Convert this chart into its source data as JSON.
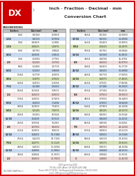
{
  "title_line1": "Inch · Fraction · Decimal · mm",
  "title_line2": "Conversion Chart",
  "bg_color": "#ffffff",
  "border_color": "#cc0000",
  "row_colors": {
    "white": "#ffffff",
    "blue": "#c6d9f1",
    "green": "#d8e4bc",
    "red": "#f2dcdb",
    "gray": "#d9d9d9"
  },
  "left_rows": [
    [
      "",
      "1/64",
      "0.0156",
      "0.3969",
      "white"
    ],
    [
      "1/32",
      "",
      "0.0313",
      "0.7938",
      "blue"
    ],
    [
      "",
      "3/64",
      "0.0469",
      "1.1906",
      "white"
    ],
    [
      "1/16",
      "",
      "0.0625",
      "1.5875",
      "green"
    ],
    [
      "",
      "5/64",
      "0.0781",
      "1.9844",
      "white"
    ],
    [
      "3/32",
      "",
      "0.0938",
      "2.3813",
      "blue"
    ],
    [
      "",
      "7/64",
      "0.1094",
      "2.7781",
      "white"
    ],
    [
      "1/8",
      "",
      "0.1250",
      "3.1750",
      "red"
    ],
    [
      "",
      "9/64",
      "0.1406",
      "3.5719",
      "white"
    ],
    [
      "5/32",
      "",
      "0.1563",
      "3.9688",
      "blue"
    ],
    [
      "",
      "11/64",
      "0.1719",
      "4.3656",
      "white"
    ],
    [
      "3/16",
      "",
      "0.1875",
      "4.7625",
      "green"
    ],
    [
      "",
      "13/64",
      "0.2031",
      "5.1594",
      "white"
    ],
    [
      "7/32",
      "",
      "0.2188",
      "5.5563",
      "blue"
    ],
    [
      "",
      "15/64",
      "0.2344",
      "5.9531",
      "white"
    ],
    [
      "1/4",
      "",
      "0.2500",
      "6.3500",
      "red"
    ],
    [
      "",
      "17/64",
      "0.2656",
      "6.7469",
      "white"
    ],
    [
      "9/32",
      "",
      "0.2813",
      "7.1438",
      "blue"
    ],
    [
      "",
      "19/64",
      "0.2969",
      "7.5406",
      "white"
    ],
    [
      "5/16",
      "",
      "0.3125",
      "7.9375",
      "green"
    ],
    [
      "",
      "21/64",
      "0.3281",
      "8.3344",
      "white"
    ],
    [
      "11/32",
      "",
      "0.3438",
      "8.7313",
      "blue"
    ],
    [
      "",
      "23/64",
      "0.3594",
      "9.1281",
      "white"
    ],
    [
      "3/8",
      "",
      "0.3750",
      "9.5250",
      "red"
    ],
    [
      "",
      "25/64",
      "0.3906",
      "9.9219",
      "white"
    ],
    [
      "13/32",
      "",
      "0.4063",
      "10.3188",
      "blue"
    ],
    [
      "",
      "27/64",
      "0.4219",
      "10.7156",
      "white"
    ],
    [
      "7/16",
      "",
      "0.4375",
      "11.1125",
      "green"
    ],
    [
      "",
      "29/64",
      "0.4531",
      "11.5094",
      "white"
    ],
    [
      "15/32",
      "",
      "0.4688",
      "11.9063",
      "blue"
    ],
    [
      "",
      "31/64",
      "0.4844",
      "12.3031",
      "white"
    ],
    [
      "1/2",
      "",
      "0.5000",
      "12.7000",
      "red"
    ]
  ],
  "right_rows": [
    [
      "",
      "33/64",
      "0.5156",
      "13.0969",
      "white"
    ],
    [
      "17/32",
      "",
      "0.5313",
      "13.4938",
      "blue"
    ],
    [
      "",
      "35/64",
      "0.5469",
      "13.8906",
      "white"
    ],
    [
      "9/16",
      "",
      "0.5625",
      "14.2875",
      "green"
    ],
    [
      "",
      "37/64",
      "0.5781",
      "14.6844",
      "white"
    ],
    [
      "19/32",
      "",
      "0.5938",
      "15.0813",
      "blue"
    ],
    [
      "",
      "39/64",
      "0.6094",
      "15.4781",
      "white"
    ],
    [
      "5/8",
      "",
      "0.6250",
      "15.8750",
      "red"
    ],
    [
      "",
      "41/64",
      "0.6406",
      "16.2719",
      "white"
    ],
    [
      "21/32",
      "",
      "0.6563",
      "16.6688",
      "blue"
    ],
    [
      "",
      "43/64",
      "0.6719",
      "17.0656",
      "white"
    ],
    [
      "11/16",
      "",
      "0.6875",
      "17.4625",
      "green"
    ],
    [
      "",
      "45/64",
      "0.7031",
      "17.8594",
      "white"
    ],
    [
      "23/32",
      "",
      "0.7188",
      "18.2563",
      "blue"
    ],
    [
      "",
      "47/64",
      "0.7344",
      "18.6531",
      "white"
    ],
    [
      "3/4",
      "",
      "0.7500",
      "19.0500",
      "red"
    ],
    [
      "",
      "49/64",
      "0.7656",
      "19.4469",
      "white"
    ],
    [
      "25/32",
      "",
      "0.7813",
      "19.8438",
      "blue"
    ],
    [
      "",
      "51/64",
      "0.7969",
      "20.2406",
      "white"
    ],
    [
      "13/16",
      "",
      "0.8125",
      "20.6375",
      "green"
    ],
    [
      "",
      "53/64",
      "0.8281",
      "21.0344",
      "white"
    ],
    [
      "27/32",
      "",
      "0.8438",
      "21.4313",
      "blue"
    ],
    [
      "",
      "55/64",
      "0.8594",
      "21.8281",
      "white"
    ],
    [
      "7/8",
      "",
      "0.8750",
      "22.2250",
      "red"
    ],
    [
      "",
      "57/64",
      "0.8906",
      "22.6219",
      "white"
    ],
    [
      "29/32",
      "",
      "0.9063",
      "23.0188",
      "blue"
    ],
    [
      "",
      "59/64",
      "0.9219",
      "23.4156",
      "white"
    ],
    [
      "15/16",
      "",
      "0.9375",
      "23.8125",
      "green"
    ],
    [
      "",
      "61/64",
      "0.9531",
      "24.2094",
      "white"
    ],
    [
      "31/32",
      "",
      "0.9688",
      "24.6063",
      "blue"
    ],
    [
      "",
      "63/64",
      "0.9844",
      "25.0031",
      "white"
    ],
    [
      "1",
      "",
      "1.0000",
      "25.4000",
      "red"
    ]
  ],
  "footer_lines": [
    "DX Engineering 2010",
    "P.O. Box 1491, Akron, OH 44309-1491 USA",
    "Phone: 800-777-0703 – Fax/Support and Distribution: 330-572-3200",
    "email: DXEngineering@DXEngineering.com"
  ],
  "footer2": "DX-CONV-CHART Rev 3"
}
